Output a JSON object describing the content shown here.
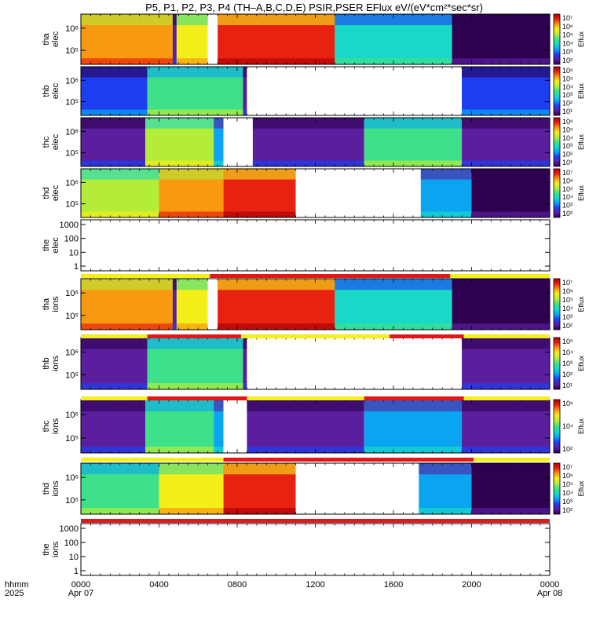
{
  "figure": {
    "title": "P5, P1, P2, P3, P4 (TH–A,B,C,D,E) PSIR,PSER EFlux eV/(eV*cm²*sec*sr)"
  },
  "colorbar_label": "Eflux",
  "colors": {
    "scale": [
      "#2d0050",
      "#5a1e9e",
      "#1d3ef0",
      "#0aa5f0",
      "#18d9c8",
      "#3fe08a",
      "#b4ec3a",
      "#f4ee1a",
      "#f89a10",
      "#e82210",
      "#b00008"
    ],
    "ready_bar": "#f4ee1a",
    "active_bar": "#e01818"
  },
  "x_axis": {
    "row_label": "hhmm",
    "row_label_year": "2025",
    "ticks": [
      "0000",
      "0400",
      "0800",
      "1200",
      "1600",
      "2000",
      "0000"
    ],
    "dates": [
      "Apr 07",
      "Apr 08"
    ]
  },
  "chart_data": {
    "type": "heatmap",
    "x_range_hours": [
      0,
      24
    ],
    "panels": [
      {
        "id": "tha-elec",
        "probe": "tha",
        "species": "elec",
        "y_ticks": [
          "10⁶",
          "10⁵"
        ],
        "cbar_ticks": [
          "10⁷",
          "10⁶",
          "10⁵",
          "10⁴",
          "10³",
          "10²"
        ],
        "has_data": true,
        "blocks": [
          [
            0,
            4.7,
            8
          ],
          [
            4.7,
            4.9,
            1
          ],
          [
            4.9,
            6.5,
            7
          ],
          [
            6.5,
            7.0,
            -1
          ],
          [
            7.0,
            13.0,
            9
          ],
          [
            13.0,
            19.0,
            4
          ],
          [
            19.0,
            24,
            0
          ]
        ]
      },
      {
        "id": "thb-elec",
        "probe": "thb",
        "species": "elec",
        "y_ticks": [
          "10⁶",
          "10⁵"
        ],
        "cbar_ticks": [
          "10⁶",
          "10⁵",
          "10⁴",
          "10³",
          "10²",
          "10¹"
        ],
        "has_data": true,
        "blocks": [
          [
            0,
            3.4,
            2
          ],
          [
            3.4,
            8.3,
            5
          ],
          [
            8.3,
            8.5,
            1
          ],
          [
            8.5,
            19.5,
            -1
          ],
          [
            19.5,
            24,
            2
          ]
        ]
      },
      {
        "id": "thc-elec",
        "probe": "thc",
        "species": "elec",
        "y_ticks": [
          "10⁶",
          "10⁵"
        ],
        "cbar_ticks": [
          "10⁶",
          "10⁵",
          "10⁴",
          "10³",
          "10²",
          "10¹"
        ],
        "has_data": true,
        "blocks": [
          [
            0,
            3.3,
            1
          ],
          [
            3.3,
            6.8,
            6
          ],
          [
            6.8,
            7.3,
            3
          ],
          [
            7.3,
            8.8,
            -1
          ],
          [
            8.8,
            14.5,
            1
          ],
          [
            14.5,
            19.5,
            5
          ],
          [
            19.5,
            24,
            1
          ]
        ]
      },
      {
        "id": "thd-elec",
        "probe": "thd",
        "species": "elec",
        "y_ticks": [
          "10⁶",
          "10⁵"
        ],
        "cbar_ticks": [
          "10⁷",
          "10⁶",
          "10⁵",
          "10⁴",
          "10³",
          "10²"
        ],
        "has_data": true,
        "blocks": [
          [
            0,
            4.0,
            6
          ],
          [
            4.0,
            7.3,
            8
          ],
          [
            7.3,
            11.0,
            9
          ],
          [
            11.0,
            17.4,
            -1
          ],
          [
            17.4,
            20.0,
            3
          ],
          [
            20.0,
            24,
            0
          ]
        ]
      },
      {
        "id": "the-elec",
        "probe": "the",
        "species": "elec",
        "y_ticks": [
          "1000",
          "100",
          "10",
          "1"
        ],
        "cbar_ticks": [],
        "has_data": false,
        "blocks": []
      },
      {
        "id": "tha-ions",
        "probe": "tha",
        "species": "ions",
        "y_ticks": [
          "10⁶",
          "10⁵"
        ],
        "cbar_ticks": [
          "10⁷",
          "10⁶",
          "10⁵",
          "10⁴",
          "10³",
          "10²"
        ],
        "has_data": true,
        "blocks": [
          [
            0,
            4.7,
            8
          ],
          [
            4.7,
            4.9,
            1
          ],
          [
            4.9,
            6.5,
            7
          ],
          [
            6.5,
            7.0,
            -1
          ],
          [
            7.0,
            13.0,
            9
          ],
          [
            13.0,
            19.0,
            4
          ],
          [
            19.0,
            24,
            0
          ]
        ]
      },
      {
        "id": "thb-ions",
        "probe": "thb",
        "species": "ions",
        "y_ticks": [
          "10⁶",
          "10⁵"
        ],
        "cbar_ticks": [
          "10⁵",
          "10⁴",
          "10³",
          "10²",
          "10¹"
        ],
        "has_data": true,
        "blocks": [
          [
            0,
            3.4,
            1
          ],
          [
            3.4,
            8.3,
            5
          ],
          [
            8.3,
            8.5,
            1
          ],
          [
            8.5,
            19.5,
            -1
          ],
          [
            19.5,
            24,
            1
          ]
        ]
      },
      {
        "id": "thc-ions",
        "probe": "thc",
        "species": "ions",
        "y_ticks": [
          "10⁶",
          "10⁵"
        ],
        "cbar_ticks": [
          "10⁶",
          "10⁴",
          "10²"
        ],
        "has_data": true,
        "blocks": [
          [
            0,
            3.3,
            1
          ],
          [
            3.3,
            6.8,
            5
          ],
          [
            6.8,
            7.3,
            3
          ],
          [
            7.3,
            8.5,
            -1
          ],
          [
            8.5,
            14.5,
            1
          ],
          [
            14.5,
            19.5,
            3
          ],
          [
            19.5,
            24,
            1
          ]
        ]
      },
      {
        "id": "thd-ions",
        "probe": "thd",
        "species": "ions",
        "y_ticks": [
          "10⁶",
          "10⁵"
        ],
        "cbar_ticks": [
          "10⁷",
          "10⁶",
          "10⁵",
          "10⁴",
          "10³",
          "10²"
        ],
        "has_data": true,
        "blocks": [
          [
            0,
            4.0,
            5
          ],
          [
            4.0,
            7.3,
            7
          ],
          [
            7.3,
            11.0,
            9
          ],
          [
            11.0,
            17.3,
            -1
          ],
          [
            17.3,
            20.0,
            3
          ],
          [
            20.0,
            24,
            0
          ]
        ]
      },
      {
        "id": "the-ions",
        "probe": "the",
        "species": "ions",
        "y_ticks": [
          "1000",
          "100",
          "10",
          "1"
        ],
        "cbar_ticks": [],
        "has_data": false,
        "blocks": []
      }
    ],
    "mode_bars": [
      {
        "after_panel": "the-elec",
        "active_hours": [
          [
            6.6,
            18.9
          ]
        ]
      },
      {
        "after_panel": "tha-ions",
        "active_hours": [
          [
            3.4,
            8.2
          ],
          [
            15.8,
            19.6
          ]
        ]
      },
      {
        "after_panel": "thb-ions",
        "active_hours": [
          [
            3.4,
            8.5
          ],
          [
            14.5,
            19.6
          ]
        ]
      },
      {
        "after_panel": "thc-ions",
        "active_hours": [
          [
            7.3,
            20.1
          ]
        ]
      },
      {
        "after_panel": "thd-ions",
        "active_hours": [
          [
            0,
            24
          ]
        ]
      }
    ]
  }
}
